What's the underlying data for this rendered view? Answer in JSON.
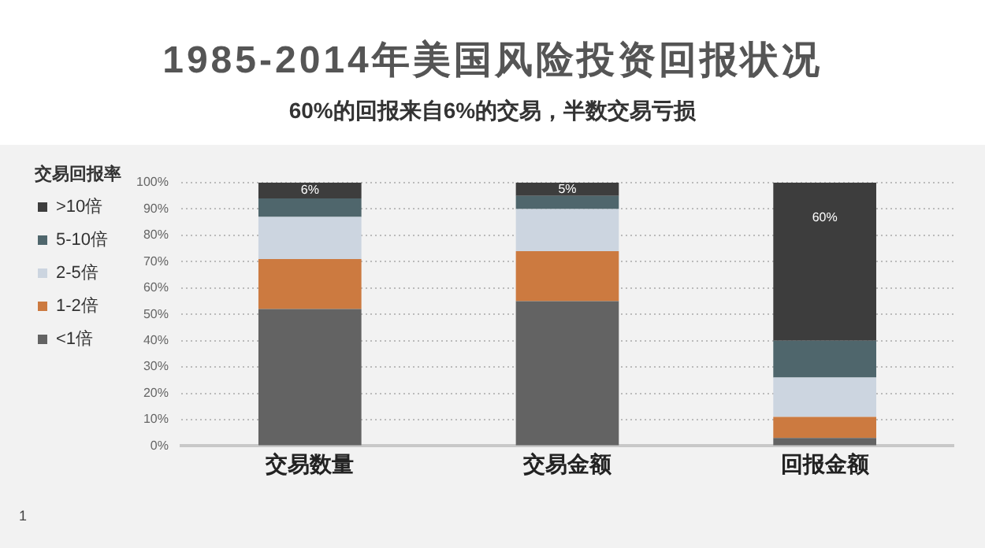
{
  "chart_data": {
    "type": "bar",
    "stacked": true,
    "title": "1985-2014年美国风险投资回报状况",
    "subtitle": "60%的回报来自6%的交易，半数交易亏损",
    "legend_title": "交易回报率",
    "categories": [
      "交易数量",
      "交易金额",
      "回报金额"
    ],
    "series": [
      {
        "name": "<1倍",
        "color": "#636363",
        "values": [
          52,
          55,
          3
        ]
      },
      {
        "name": "1-2倍",
        "color": "#cc7a40",
        "values": [
          19,
          19,
          8
        ]
      },
      {
        "name": "2-5倍",
        "color": "#ccd5e0",
        "values": [
          16,
          16,
          15
        ]
      },
      {
        "name": "5-10倍",
        "color": "#4f666c",
        "values": [
          7,
          5,
          14
        ]
      },
      {
        "name": ">10倍",
        "color": "#3d3d3d",
        "values": [
          6,
          5,
          60
        ],
        "value_labels": [
          "6%",
          "5%",
          "60%"
        ]
      }
    ],
    "ylim": [
      0,
      100
    ],
    "yticks": [
      {
        "value": 0,
        "label": "0%"
      },
      {
        "value": 10,
        "label": "10%"
      },
      {
        "value": 20,
        "label": "20%"
      },
      {
        "value": 30,
        "label": "30%"
      },
      {
        "value": 40,
        "label": "40%"
      },
      {
        "value": 50,
        "label": "50%"
      },
      {
        "value": 60,
        "label": "60%"
      },
      {
        "value": 70,
        "label": "70%"
      },
      {
        "value": 80,
        "label": "80%"
      },
      {
        "value": 90,
        "label": "90%"
      },
      {
        "value": 100,
        "label": "100%"
      }
    ],
    "grid": "y",
    "legend": "left",
    "annotations": [
      "1"
    ]
  }
}
